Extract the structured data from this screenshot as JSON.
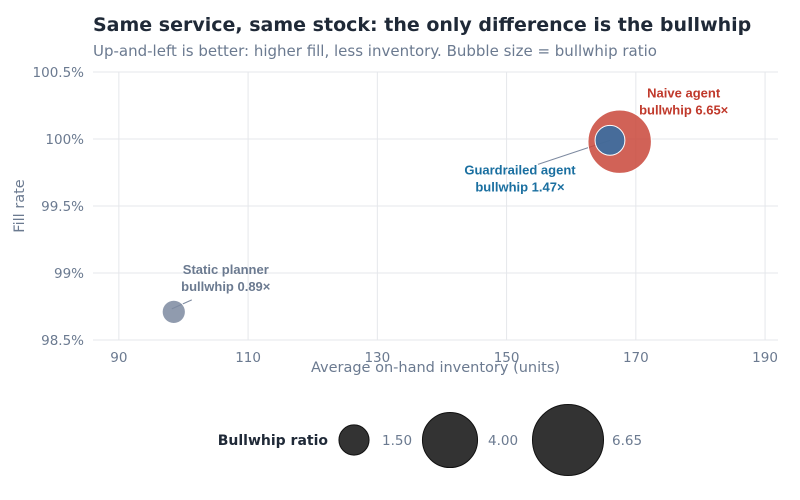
{
  "chart_data": {
    "type": "scatter",
    "title": "Same service, same stock: the only difference is the bullwhip",
    "subtitle": "Up-and-left is better: higher fill, less inventory. Bubble size = bullwhip ratio",
    "xlabel": "Average on-hand inventory (units)",
    "ylabel": "Fill rate",
    "xlim": [
      86,
      192
    ],
    "ylim": [
      98.5,
      100.5
    ],
    "xticks": [
      90,
      110,
      130,
      150,
      170,
      190
    ],
    "xtick_labels": [
      "90",
      "110",
      "130",
      "150",
      "170",
      "190"
    ],
    "yticks": [
      98.5,
      99,
      99.5,
      100,
      100.5
    ],
    "ytick_labels": [
      "98.5%",
      "99%",
      "99.5%",
      "100%",
      "100.5%"
    ],
    "grid": true,
    "series": [
      {
        "name": "Static planner",
        "x": 98.5,
        "y": 98.71,
        "bullwhip": 0.89,
        "color": "#7d8aa0",
        "label_lines": [
          "Static planner",
          "bullwhip 0.89×"
        ],
        "label_color": "#6b7a90"
      },
      {
        "name": "Naive agent",
        "x": 167.5,
        "y": 99.98,
        "bullwhip": 6.65,
        "color": "#c9463a",
        "label_lines": [
          "Naive agent",
          "bullwhip 6.65×"
        ],
        "label_color": "#c0392b"
      },
      {
        "name": "Guardrailed agent",
        "x": 166,
        "y": 99.99,
        "bullwhip": 1.47,
        "color": "#2f6fa6",
        "label_lines": [
          "Guardrailed agent",
          "bullwhip 1.47×"
        ],
        "label_color": "#1a6fa0"
      }
    ],
    "legend": {
      "title": "Bullwhip ratio",
      "placement": "bottom",
      "entries": [
        {
          "value": 1.5,
          "label": "1.50"
        },
        {
          "value": 4.0,
          "label": "4.00"
        },
        {
          "value": 6.65,
          "label": "6.65"
        }
      ],
      "color": "#333333"
    }
  }
}
